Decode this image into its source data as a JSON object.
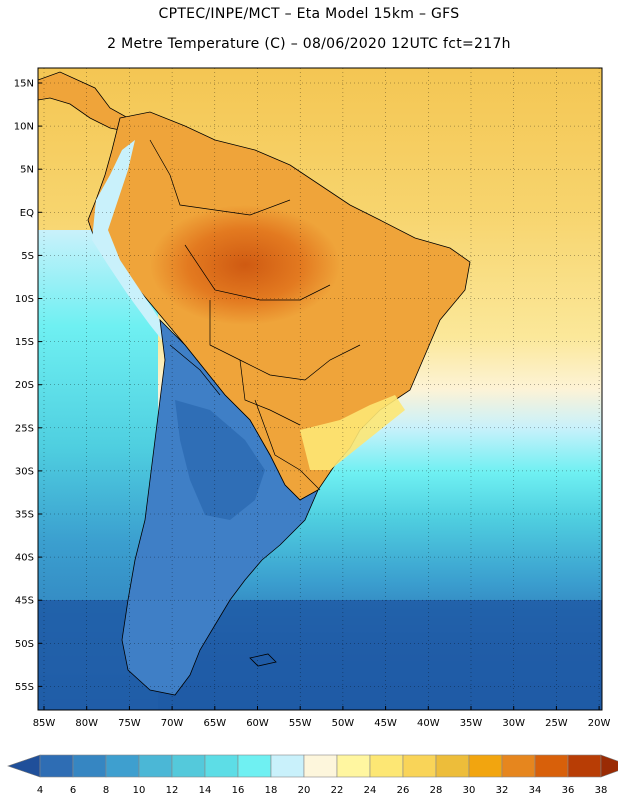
{
  "header": {
    "title_line1": "CPTEC/INPE/MCT –  Eta Model 15km – GFS",
    "title_line2": "2 Metre Temperature (C) – 08/06/2020 12UTC fct=217h"
  },
  "map": {
    "lat_labels": [
      "15N",
      "10N",
      "5N",
      "EQ",
      "5S",
      "10S",
      "15S",
      "20S",
      "25S",
      "30S",
      "35S",
      "40S",
      "45S",
      "50S",
      "55S"
    ],
    "lon_labels": [
      "85W",
      "80W",
      "75W",
      "70W",
      "65W",
      "60W",
      "55W",
      "50W",
      "45W",
      "40W",
      "35W",
      "30W",
      "25W",
      "20W"
    ]
  },
  "legend": {
    "ticks": [
      "4",
      "6",
      "8",
      "10",
      "12",
      "14",
      "16",
      "18",
      "20",
      "22",
      "24",
      "26",
      "28",
      "30",
      "32",
      "34",
      "36",
      "38"
    ],
    "colors": [
      "#1f4f9a",
      "#2e6db4",
      "#3686c2",
      "#3e9fcf",
      "#4bb7d6",
      "#54c9db",
      "#5ddde6",
      "#6ff0f2",
      "#c9f1fb",
      "#fdf6dc",
      "#fff6a0",
      "#fde774",
      "#f9d458",
      "#edbd3a",
      "#f2a50f",
      "#e6861e",
      "#d8600a",
      "#b83d05",
      "#9a2b04"
    ]
  },
  "colors": {
    "ocean_deep": "#1f5ba6",
    "ocean_mid": "#2e7ec0",
    "ocean_cyan": "#4fd0e0",
    "land_cold": "#3f7fc6",
    "land_warm": "#efa43a",
    "land_hot": "#d8681a",
    "north_atlantic": "#f6d66a"
  }
}
